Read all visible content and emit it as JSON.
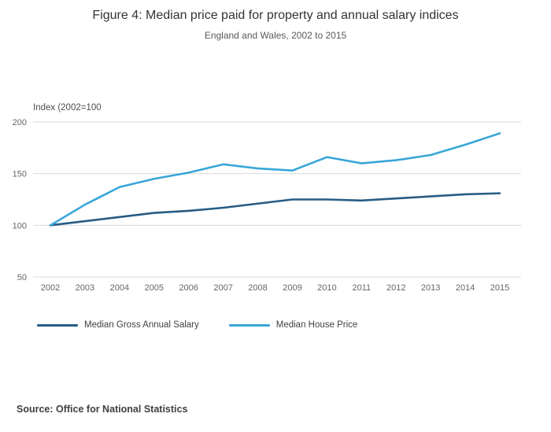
{
  "title": "Figure 4: Median price paid for property and annual salary indices",
  "subtitle": "England and Wales, 2002 to 2015",
  "source": "Source: Office for National Statistics",
  "chart_data": {
    "type": "line",
    "title": "Figure 4: Median price paid for property and annual salary indices",
    "subtitle": "England and Wales, 2002 to 2015",
    "axis_label": "Index (2002=100",
    "categories": [
      "2002",
      "2003",
      "2004",
      "2005",
      "2006",
      "2007",
      "2008",
      "2009",
      "2010",
      "2011",
      "2012",
      "2013",
      "2014",
      "2015"
    ],
    "series": [
      {
        "name": "Median Gross Annual Salary",
        "color": "#275c85",
        "values": [
          100,
          104,
          108,
          112,
          114,
          117,
          121,
          125,
          125,
          124,
          126,
          128,
          130,
          131
        ]
      },
      {
        "name": "Median House Price",
        "color": "#38a6d8",
        "values": [
          100,
          120,
          137,
          145,
          151,
          159,
          155,
          153,
          166,
          160,
          163,
          168,
          178,
          189
        ]
      }
    ],
    "ylim": [
      50,
      200
    ],
    "yticks": [
      50,
      100,
      150,
      200
    ],
    "grid_color": "#d9d9d9",
    "grid": "horizontal-only",
    "legend_position": "bottom"
  }
}
